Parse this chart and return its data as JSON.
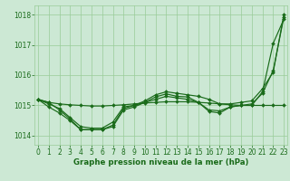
{
  "x": [
    0,
    1,
    2,
    3,
    4,
    5,
    6,
    7,
    8,
    9,
    10,
    11,
    12,
    13,
    14,
    15,
    16,
    17,
    18,
    19,
    20,
    21,
    22,
    23
  ],
  "line_steep": [
    1015.2,
    1015.1,
    1014.85,
    1014.55,
    1014.2,
    1014.2,
    1014.2,
    1014.35,
    1014.9,
    1015.0,
    1015.15,
    1015.35,
    1015.45,
    1015.4,
    1015.35,
    1015.3,
    1015.2,
    1015.05,
    1015.05,
    1015.1,
    1015.15,
    1015.55,
    1016.1,
    1018.0
  ],
  "line_dip": [
    1015.2,
    1014.95,
    1014.75,
    1014.5,
    1014.2,
    1014.2,
    1014.2,
    1014.3,
    1014.85,
    1014.95,
    1015.1,
    1015.28,
    1015.38,
    1015.3,
    1015.28,
    1015.1,
    1014.8,
    1014.75,
    1014.95,
    1015.0,
    1015.0,
    1015.45,
    1017.05,
    1017.85
  ],
  "line_mid": [
    1015.2,
    1015.05,
    1014.9,
    1014.6,
    1014.3,
    1014.25,
    1014.25,
    1014.45,
    1014.95,
    1015.0,
    1015.1,
    1015.2,
    1015.3,
    1015.25,
    1015.2,
    1015.1,
    1014.85,
    1014.82,
    1014.95,
    1015.0,
    1015.05,
    1015.4,
    1016.15,
    1017.92
  ],
  "line_flat": [
    1015.2,
    1015.1,
    1015.05,
    1015.02,
    1015.0,
    1014.98,
    1014.98,
    1015.0,
    1015.02,
    1015.05,
    1015.08,
    1015.1,
    1015.12,
    1015.12,
    1015.12,
    1015.1,
    1015.08,
    1015.05,
    1015.02,
    1015.0,
    1015.0,
    1015.0,
    1015.0,
    1015.0
  ],
  "ylim_min": 1013.7,
  "ylim_max": 1018.3,
  "yticks": [
    1014,
    1015,
    1016,
    1017,
    1018
  ],
  "xticks": [
    0,
    1,
    2,
    3,
    4,
    5,
    6,
    7,
    8,
    9,
    10,
    11,
    12,
    13,
    14,
    15,
    16,
    17,
    18,
    19,
    20,
    21,
    22,
    23
  ],
  "line_color": "#1a6b1a",
  "bg_color": "#cce8d4",
  "grid_color": "#99cc99",
  "xlabel": "Graphe pression niveau de la mer (hPa)",
  "tick_fontsize": 5.5,
  "xlabel_fontsize": 6.2,
  "linewidth": 0.85,
  "markersize": 2.0
}
